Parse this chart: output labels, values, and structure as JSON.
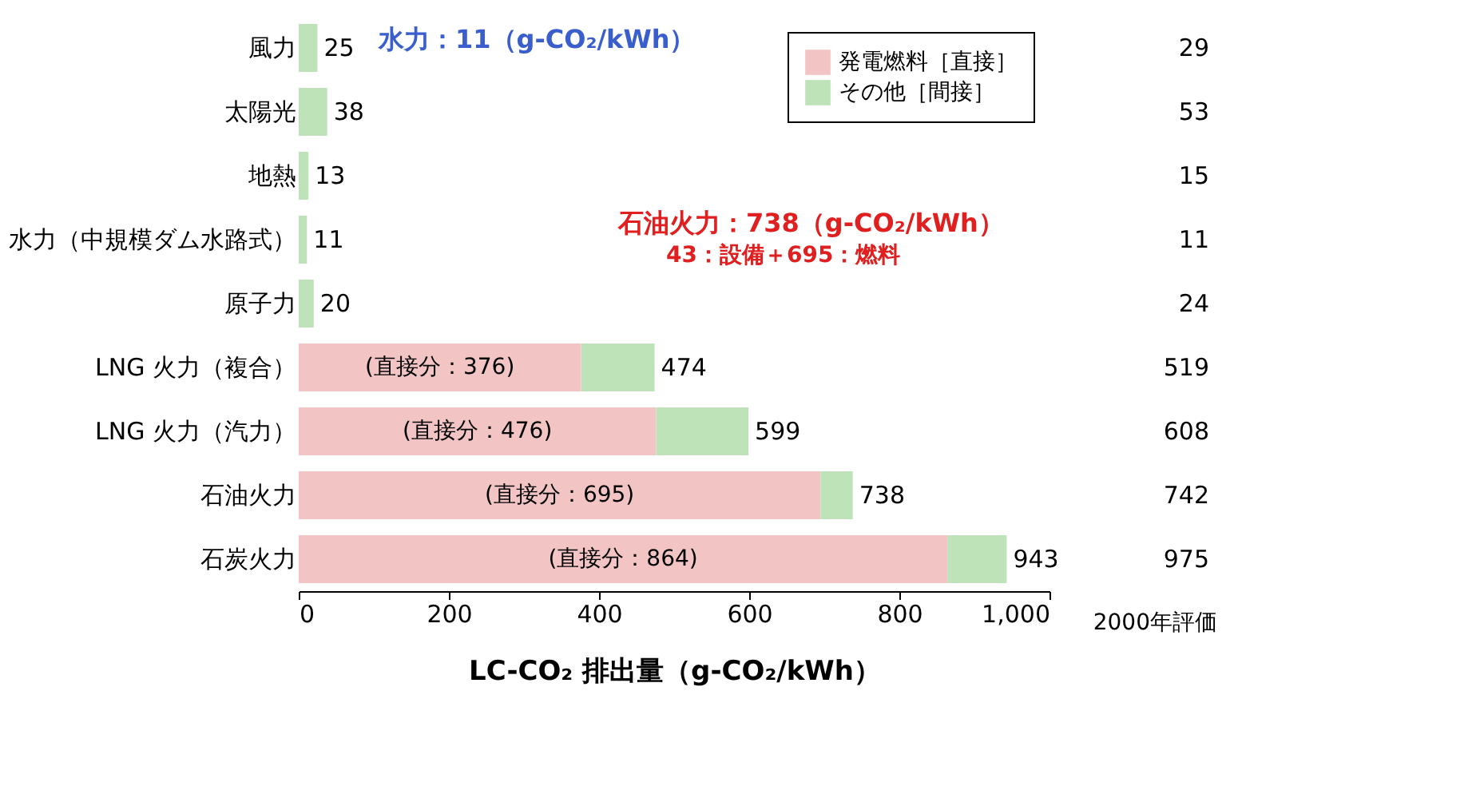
{
  "chart_data": [
    {
      "type": "bar",
      "orientation": "horizontal",
      "stacked": true,
      "categories": [
        "風力",
        "太陽光",
        "地熱",
        "水力（中規模ダム水路式）",
        "原子力",
        "LNG 火力（複合）",
        "LNG 火力（汽力）",
        "石油火力",
        "石炭火力"
      ],
      "series": [
        {
          "name": "発電燃料［直接］",
          "color": "#f2c4c4",
          "values": [
            0,
            0,
            0,
            0,
            0,
            376,
            476,
            695,
            864
          ],
          "value_labels": [
            null,
            null,
            null,
            null,
            null,
            "(直接分：376)",
            "(直接分：476)",
            "(直接分：695)",
            "(直接分：864)"
          ]
        },
        {
          "name": "その他［間接］",
          "color": "#bfe3b8",
          "values": [
            25,
            38,
            13,
            11,
            20,
            98,
            123,
            43,
            79
          ]
        }
      ],
      "totals": [
        "25",
        "38",
        "13",
        "11",
        "20",
        "474",
        "599",
        "738",
        "943"
      ],
      "xlim": [
        0,
        1000
      ],
      "xticks": [
        0,
        200,
        400,
        600,
        800,
        {
          "value": 1000,
          "label": "1,000"
        }
      ],
      "xlabel": "LC-CO₂ 排出量（g-CO₂/kWh）",
      "grid": false,
      "legend": "top right",
      "annotations": [
        "水力：11（g-CO₂/kWh）",
        "石油火力：738（g-CO₂/kWh）",
        "43：設備＋695：燃料"
      ]
    },
    {
      "type": "other",
      "categories": [
        null,
        null,
        null,
        null,
        null,
        null,
        null,
        null,
        null
      ],
      "values": [
        29,
        53,
        15,
        11,
        24,
        519,
        608,
        742,
        975
      ],
      "data_labels": true,
      "xlabel": "2000年評価"
    }
  ]
}
